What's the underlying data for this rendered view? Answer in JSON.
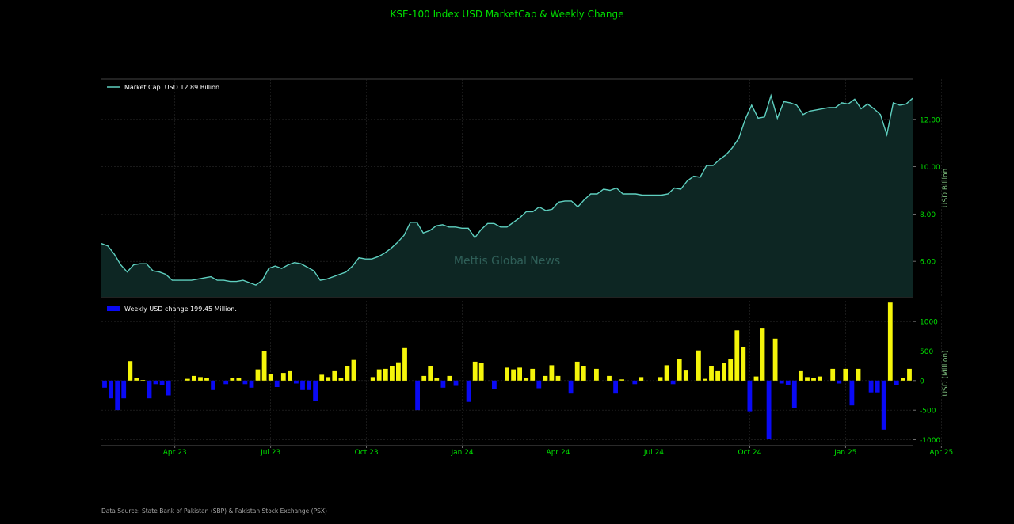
{
  "title": "KSE-100 Index USD MarketCap & Weekly Change",
  "source": "Data Source: State Bank of Pakistan (SBP) & Pakistan Stock Exchange (PSX)",
  "watermark": "Mettis Global News",
  "colors": {
    "background": "#000000",
    "line": "#5fd0c0",
    "area_fill": "#0d2623",
    "positive_bar": "#f5f50a",
    "negative_bar": "#0a0af5",
    "tick_text": "#00e000",
    "grid": "#2a2a2a",
    "axis_label": "#7fbf7f"
  },
  "chart_data": [
    {
      "type": "area",
      "title": "KSE-100 Index USD MarketCap & Weekly Change",
      "legend": "Market Cap. USD 12.89 Billion",
      "legend_position": "top-left",
      "ylabel": "USD Billion",
      "ylim": [
        4.5,
        13.7
      ],
      "yticks": [
        "6.00",
        "8.00",
        "10.00",
        "12.00"
      ],
      "ytick_values": [
        6,
        8,
        10,
        12
      ],
      "grid": true,
      "x_axis": "weekly, Feb 2023 - Jun 2025",
      "values": [
        6.75,
        6.65,
        6.3,
        5.85,
        5.55,
        5.85,
        5.9,
        5.9,
        5.6,
        5.55,
        5.45,
        5.2,
        5.2,
        5.2,
        5.2,
        5.25,
        5.3,
        5.35,
        5.2,
        5.2,
        5.15,
        5.15,
        5.2,
        5.1,
        5.0,
        5.2,
        5.7,
        5.8,
        5.7,
        5.85,
        5.95,
        5.9,
        5.75,
        5.6,
        5.2,
        5.25,
        5.35,
        5.45,
        5.55,
        5.8,
        6.15,
        6.1,
        6.1,
        6.2,
        6.35,
        6.55,
        6.8,
        7.1,
        7.65,
        7.65,
        7.2,
        7.3,
        7.5,
        7.55,
        7.45,
        7.45,
        7.4,
        7.4,
        7.0,
        7.35,
        7.6,
        7.6,
        7.45,
        7.45,
        7.65,
        7.85,
        8.1,
        8.1,
        8.3,
        8.15,
        8.2,
        8.5,
        8.55,
        8.55,
        8.3,
        8.6,
        8.85,
        8.85,
        9.05,
        9.0,
        9.1,
        8.85,
        8.85,
        8.85,
        8.8,
        8.8,
        8.8,
        8.8,
        8.85,
        9.1,
        9.05,
        9.4,
        9.6,
        9.55,
        10.05,
        10.05,
        10.3,
        10.5,
        10.8,
        11.2,
        12.0,
        12.6,
        12.05,
        12.1,
        13.0,
        12.05,
        12.75,
        12.7,
        12.6,
        12.2,
        12.35,
        12.4,
        12.45,
        12.5,
        12.5,
        12.7,
        12.65,
        12.85,
        12.45,
        12.65,
        12.45,
        12.2,
        11.35,
        12.7,
        12.6,
        12.65,
        12.89
      ]
    },
    {
      "type": "bar",
      "legend": "Weekly USD change 199.45 Million.",
      "legend_position": "top-left",
      "ylabel": "USD (Million)",
      "ylim": [
        -1100,
        1350
      ],
      "yticks": [
        "1000",
        "500",
        "0",
        "-500",
        "-1000"
      ],
      "ytick_values": [
        1000,
        500,
        0,
        -500,
        -1000
      ],
      "xticks": [
        "Apr 23",
        "Jul 23",
        "Oct 23",
        "Jan 24",
        "Apr 24",
        "Jul 24",
        "Oct 24",
        "Jan 25",
        "Apr 25"
      ],
      "xtick_index": [
        11,
        26,
        41,
        56,
        71,
        86,
        101,
        116,
        131
      ],
      "grid": true,
      "values": [
        -120,
        -300,
        -500,
        -300,
        330,
        50,
        10,
        -300,
        -60,
        -80,
        -250,
        0,
        0,
        30,
        80,
        60,
        40,
        -160,
        0,
        -60,
        40,
        40,
        -60,
        -120,
        190,
        500,
        110,
        -110,
        130,
        160,
        -50,
        -160,
        -160,
        -350,
        100,
        60,
        160,
        40,
        250,
        350,
        0,
        0,
        60,
        190,
        200,
        250,
        310,
        550,
        0,
        -500,
        80,
        250,
        50,
        -120,
        80,
        -90,
        0,
        -360,
        320,
        300,
        0,
        -150,
        0,
        220,
        190,
        220,
        40,
        200,
        -130,
        80,
        260,
        80,
        0,
        -220,
        320,
        250,
        0,
        200,
        0,
        80,
        -220,
        20,
        0,
        -60,
        60,
        0,
        0,
        60,
        260,
        -60,
        360,
        170,
        0,
        510,
        30,
        240,
        160,
        300,
        370,
        850,
        570,
        -520,
        70,
        880,
        -980,
        710,
        -50,
        -80,
        -460,
        160,
        60,
        50,
        70,
        0,
        200,
        -50,
        200,
        -420,
        200,
        0,
        -200,
        -200,
        -830,
        1320,
        -80,
        50,
        199.45
      ]
    }
  ]
}
